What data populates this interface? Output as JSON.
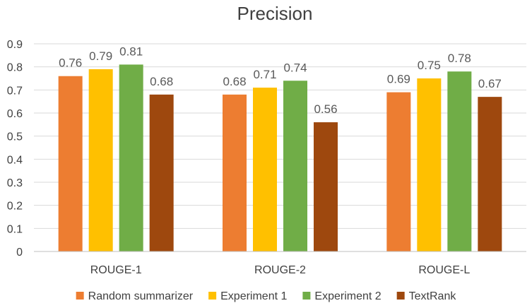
{
  "chart_data": {
    "type": "bar",
    "title": "Precision",
    "xlabel": "",
    "ylabel": "",
    "categories": [
      "ROUGE-1",
      "ROUGE-2",
      "ROUGE-L"
    ],
    "ylim": [
      0,
      0.9
    ],
    "yticks": [
      0,
      0.1,
      0.2,
      0.3,
      0.4,
      0.5,
      0.6,
      0.7,
      0.8,
      0.9
    ],
    "ytick_labels": [
      "0",
      "0.1",
      "0.2",
      "0.3",
      "0.4",
      "0.5",
      "0.6",
      "0.7",
      "0.8",
      "0.9"
    ],
    "grid": true,
    "legend_position": "bottom",
    "series": [
      {
        "name": "Random summarizer",
        "color": "#ED7D31",
        "values": [
          0.76,
          0.68,
          0.69
        ],
        "labels": [
          "0.76",
          "0.68",
          "0.69"
        ]
      },
      {
        "name": "Experiment 1",
        "color": "#FFC000",
        "values": [
          0.79,
          0.71,
          0.75
        ],
        "labels": [
          "0.79",
          "0.71",
          "0.75"
        ]
      },
      {
        "name": "Experiment 2",
        "color": "#70AD47",
        "values": [
          0.81,
          0.74,
          0.78
        ],
        "labels": [
          "0.81",
          "0.74",
          "0.78"
        ]
      },
      {
        "name": "TextRank",
        "color": "#9E480E",
        "values": [
          0.68,
          0.56,
          0.67
        ],
        "labels": [
          "0.68",
          "0.56",
          "0.67"
        ]
      }
    ]
  }
}
